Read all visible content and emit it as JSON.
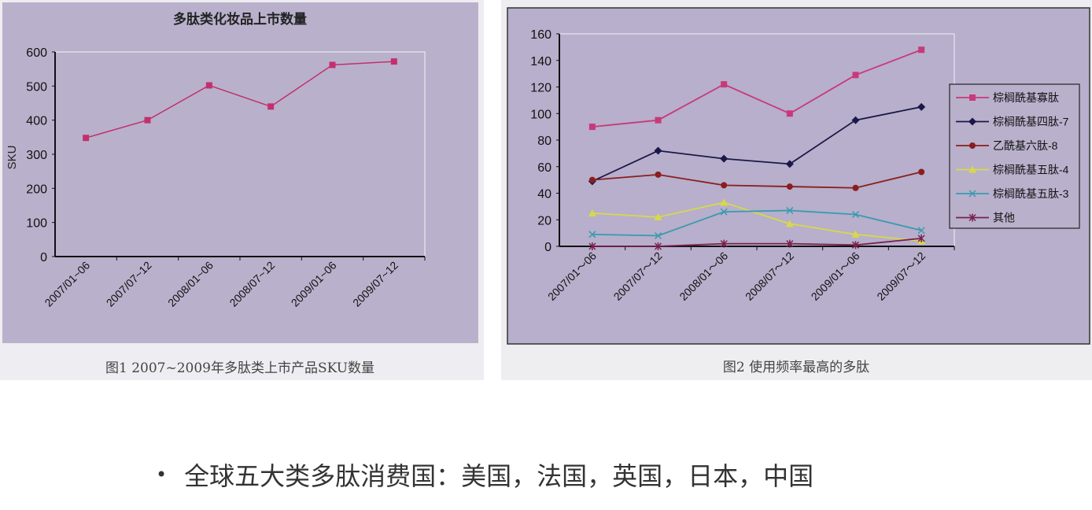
{
  "chart_data": [
    {
      "type": "line",
      "title": "多肽类化妆品上市数量",
      "ylabel": "SKU",
      "xlabel": "",
      "ylim": [
        0,
        600
      ],
      "yticks": [
        0,
        100,
        200,
        300,
        400,
        500,
        600
      ],
      "categories": [
        "2007/01~06",
        "2007/07~12",
        "2008/01~06",
        "2008/07~12",
        "2009/01~06",
        "2009/07~12"
      ],
      "values": [
        348,
        400,
        502,
        440,
        562,
        572
      ],
      "color": "#c2306e",
      "grid": false,
      "caption": "图1 2007~2009年多肽类上市产品SKU数量"
    },
    {
      "type": "line",
      "title": "",
      "ylim": [
        0,
        160
      ],
      "yticks": [
        0,
        20,
        40,
        60,
        80,
        100,
        120,
        140,
        160
      ],
      "categories": [
        "2007/01～06",
        "2007/07～12",
        "2008/01～06",
        "2008/07～12",
        "2009/01～06",
        "2009/07～12"
      ],
      "legend_position": "right",
      "grid": false,
      "series": [
        {
          "name": "棕榈酰基寡肽",
          "values": [
            90,
            95,
            122,
            100,
            129,
            148
          ],
          "color": "#c8397a",
          "marker": "square"
        },
        {
          "name": "棕榈酰基四肽-7",
          "values": [
            49,
            72,
            66,
            62,
            95,
            105
          ],
          "color": "#1a1848",
          "marker": "diamond"
        },
        {
          "name": "乙酰基六肽-8",
          "values": [
            50,
            54,
            46,
            45,
            44,
            56
          ],
          "color": "#8a1e1e",
          "marker": "circle"
        },
        {
          "name": "棕榈酰基五肽-4",
          "values": [
            25,
            22,
            33,
            17,
            9,
            4
          ],
          "color": "#d8d84a",
          "marker": "triangle"
        },
        {
          "name": "棕榈酰基五肽-3",
          "values": [
            9,
            8,
            26,
            27,
            24,
            12
          ],
          "color": "#3a9ab0",
          "marker": "x"
        },
        {
          "name": "其他",
          "values": [
            0,
            0,
            2,
            2,
            1,
            6
          ],
          "color": "#7a2050",
          "marker": "star"
        }
      ],
      "caption": "图2 使用频率最高的多肽"
    }
  ],
  "bullet": {
    "text": "全球五大类多肽消费国：美国，法国，英国，日本，中国"
  }
}
